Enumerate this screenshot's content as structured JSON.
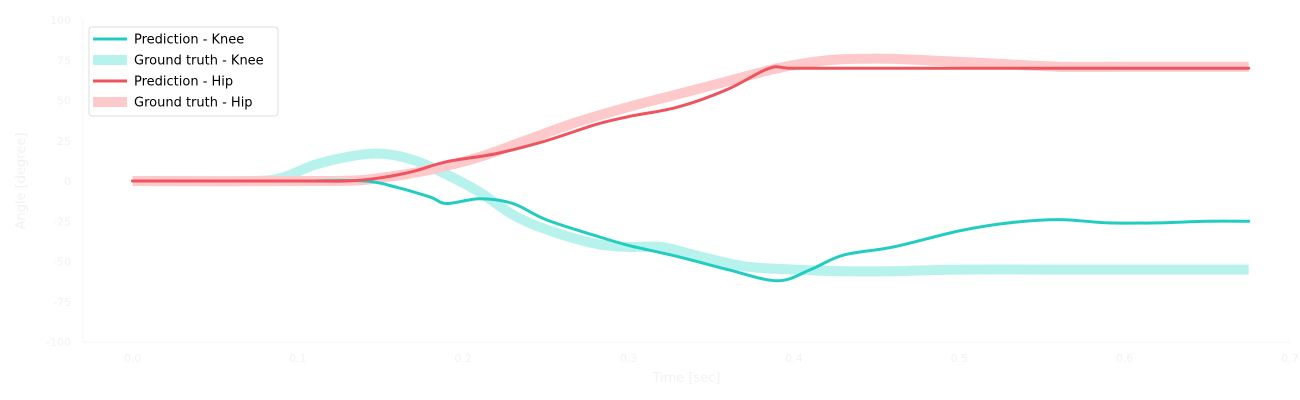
{
  "chart_data": {
    "type": "line",
    "title": "",
    "xlabel": "Time [sec]",
    "ylabel": "Angle [degree]",
    "xlim": [
      -0.03,
      0.7
    ],
    "ylim": [
      -100,
      100
    ],
    "xticks": [
      0.0,
      0.1,
      0.2,
      0.3,
      0.4,
      0.5,
      0.6,
      0.7
    ],
    "xtick_labels": [
      "0.0",
      "0.1",
      "0.2",
      "0.3",
      "0.4",
      "0.5",
      "0.6",
      "0.7"
    ],
    "yticks": [
      100,
      75,
      50,
      25,
      0,
      -25,
      -50,
      -75,
      -100
    ],
    "ytick_labels": [
      "100",
      "75",
      "50",
      "25",
      "0",
      "-25",
      "-50",
      "-75",
      "-100"
    ],
    "grid": false,
    "legend_position": "top-left",
    "series": [
      {
        "name": "Prediction - Knee",
        "color": "#22ccc0",
        "style": "thin",
        "x": [
          0.0,
          0.05,
          0.1,
          0.14,
          0.16,
          0.18,
          0.19,
          0.21,
          0.23,
          0.25,
          0.28,
          0.3,
          0.33,
          0.36,
          0.39,
          0.41,
          0.43,
          0.46,
          0.5,
          0.53,
          0.56,
          0.59,
          0.62,
          0.65,
          0.675
        ],
        "y": [
          0,
          0,
          0,
          0,
          -4,
          -10,
          -14,
          -11,
          -14,
          -24,
          -34,
          -40,
          -47,
          -55,
          -62,
          -55,
          -46,
          -41,
          -31,
          -26,
          -24,
          -26,
          -26,
          -25,
          -25
        ]
      },
      {
        "name": "Ground truth - Knee",
        "color": "#b8f2ec",
        "style": "thick",
        "x": [
          0.0,
          0.07,
          0.09,
          0.11,
          0.13,
          0.15,
          0.17,
          0.19,
          0.21,
          0.23,
          0.25,
          0.28,
          0.3,
          0.32,
          0.34,
          0.37,
          0.4,
          0.43,
          0.46,
          0.5,
          0.55,
          0.6,
          0.65,
          0.675
        ],
        "y": [
          0,
          0,
          2,
          10,
          15,
          17,
          13,
          4,
          -7,
          -21,
          -30,
          -39,
          -41,
          -41,
          -46,
          -53,
          -55,
          -56,
          -56,
          -55,
          -55,
          -55,
          -55,
          -55
        ]
      },
      {
        "name": "Prediction - Hip",
        "color": "#ef535e",
        "style": "thin",
        "x": [
          0.0,
          0.1,
          0.13,
          0.15,
          0.17,
          0.19,
          0.22,
          0.25,
          0.28,
          0.3,
          0.33,
          0.36,
          0.385,
          0.4,
          0.45,
          0.5,
          0.6,
          0.675
        ],
        "y": [
          0,
          0,
          0,
          2,
          6,
          12,
          17,
          25,
          35,
          40,
          46,
          57,
          70,
          70,
          70,
          70,
          70,
          70
        ]
      },
      {
        "name": "Ground truth - Hip",
        "color": "#fdc9cb",
        "style": "thick",
        "x": [
          0.0,
          0.12,
          0.15,
          0.18,
          0.21,
          0.24,
          0.27,
          0.3,
          0.33,
          0.36,
          0.39,
          0.42,
          0.45,
          0.48,
          0.52,
          0.56,
          0.6,
          0.675
        ],
        "y": [
          0,
          0,
          2,
          7,
          15,
          26,
          37,
          46,
          54,
          62,
          70,
          75,
          76,
          75,
          73,
          71,
          71,
          71
        ]
      }
    ]
  }
}
